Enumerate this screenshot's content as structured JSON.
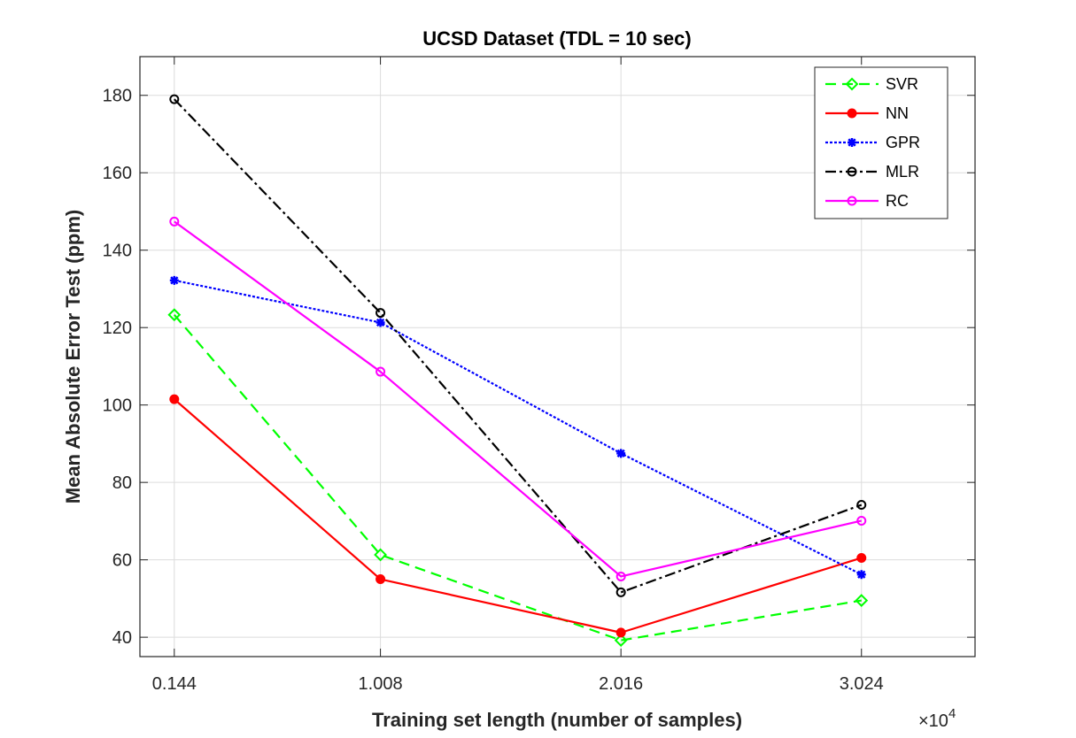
{
  "chart_data": {
    "type": "line",
    "title": "UCSD Dataset (TDL = 10 sec)",
    "xlabel": "Training set length (number of samples)",
    "ylabel": "Mean Absolute Error Test (ppm)",
    "x_multiplier_base": "×10",
    "x_multiplier_exp": "4",
    "x": [
      0.144,
      1.008,
      2.016,
      3.024
    ],
    "x_tick_labels": [
      "0.144",
      "1.008",
      "2.016",
      "3.024"
    ],
    "xlim": [
      0.0,
      3.5
    ],
    "ylim": [
      35,
      190
    ],
    "y_ticks": [
      40,
      60,
      80,
      100,
      120,
      140,
      160,
      180
    ],
    "grid": true,
    "legend_position": "top-right",
    "series": [
      {
        "name": "SVR",
        "color": "#00ff00",
        "dash": "12,7",
        "marker": "diamond",
        "values": [
          123.3,
          61.3,
          39.2,
          49.5
        ]
      },
      {
        "name": "NN",
        "color": "#ff0000",
        "dash": "",
        "marker": "dot",
        "values": [
          101.5,
          55.0,
          41.2,
          60.5
        ]
      },
      {
        "name": "GPR",
        "color": "#0000ff",
        "dash": "3,2",
        "marker": "star",
        "values": [
          132.2,
          121.3,
          87.5,
          56.2
        ]
      },
      {
        "name": "MLR",
        "color": "#000000",
        "dash": "12,4,3,4",
        "marker": "circle",
        "values": [
          179.0,
          123.8,
          51.6,
          74.2
        ]
      },
      {
        "name": "RC",
        "color": "#ff00ff",
        "dash": "",
        "marker": "circle",
        "values": [
          147.4,
          108.6,
          55.7,
          70.1
        ]
      }
    ]
  }
}
